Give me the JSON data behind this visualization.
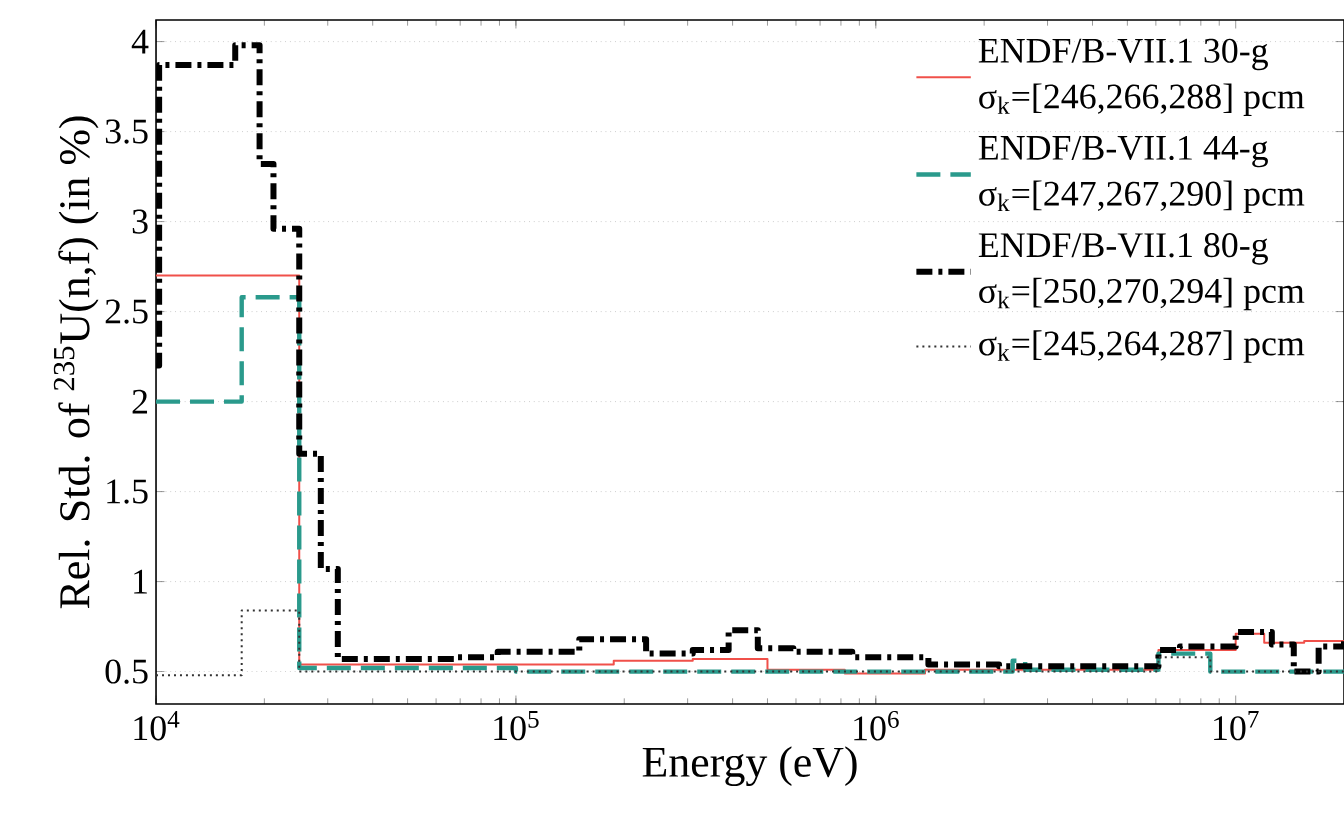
{
  "chart_data": {
    "type": "step",
    "xlabel": "Energy (eV)",
    "ylabel": "Rel. Std. of $^{235}$U(n,f) (in %)",
    "log": "x",
    "grid": "y",
    "legend": "top right",
    "xlim": [
      10000,
      20000000
    ],
    "ylim": [
      0.32,
      4.12
    ],
    "xticks": [
      {
        "value": 10000,
        "label": "10$^{4}$"
      },
      {
        "value": 100000,
        "label": "10$^{5}$"
      },
      {
        "value": 1000000,
        "label": "10$^{6}$"
      },
      {
        "value": 10000000,
        "label": "10$^{7}$"
      }
    ],
    "yticks": [
      0.5,
      1,
      1.5,
      2,
      2.5,
      3,
      3.5,
      4
    ],
    "series": [
      {
        "name": "ENDF/B-VII.1 30-g σ$_{k}$=[246,266,288] pcm",
        "color": "#f0504a",
        "line_style": "solid",
        "x": [
          10000,
          25000,
          187000,
          310000,
          500000,
          820000,
          1370000,
          6100000,
          10000000,
          12000000,
          15500000,
          20000000
        ],
        "values": [
          2.7,
          0.54,
          0.56,
          0.57,
          0.51,
          0.49,
          0.51,
          0.62,
          0.71,
          0.66,
          0.67,
          0.67
        ]
      },
      {
        "name": "ENDF/B-VII.1 44-g σ$_{k}$=[247,267,290] pcm",
        "color": "#2a9a8c",
        "line_style": "dashed",
        "x": [
          10000,
          17300,
          25000,
          100000,
          2400000,
          2600000,
          6100000,
          8500000,
          20000000
        ],
        "values": [
          2.0,
          2.58,
          0.52,
          0.5,
          0.56,
          0.51,
          0.6,
          0.5,
          0.5
        ]
      },
      {
        "name": "ENDF/B-VII.1 80-g σ$_{k}$=[250,270,294] pcm",
        "color": "#000000",
        "line_style": "dashdot",
        "x": [
          10000,
          10200,
          16600,
          19400,
          21200,
          25000,
          28700,
          32000,
          68000,
          89000,
          150000,
          230000,
          310000,
          390000,
          470000,
          590000,
          860000,
          1400000,
          2200000,
          6100000,
          7000000,
          10000000,
          12600000,
          14500000,
          17000000,
          20000000
        ],
        "values": [
          2.2,
          3.87,
          3.98,
          3.32,
          2.96,
          1.71,
          1.07,
          0.57,
          0.58,
          0.61,
          0.68,
          0.6,
          0.62,
          0.73,
          0.63,
          0.61,
          0.58,
          0.54,
          0.53,
          0.62,
          0.64,
          0.72,
          0.65,
          0.5,
          0.64,
          0.67
        ]
      },
      {
        "name": "σ$_{k}$=[245,264,287] pcm",
        "color": "#333333",
        "line_style": "dotted",
        "x": [
          10000,
          17300,
          25000,
          6100000,
          8500000,
          20000000
        ],
        "values": [
          0.48,
          0.84,
          0.5,
          0.58,
          0.5,
          0.5
        ]
      }
    ]
  }
}
